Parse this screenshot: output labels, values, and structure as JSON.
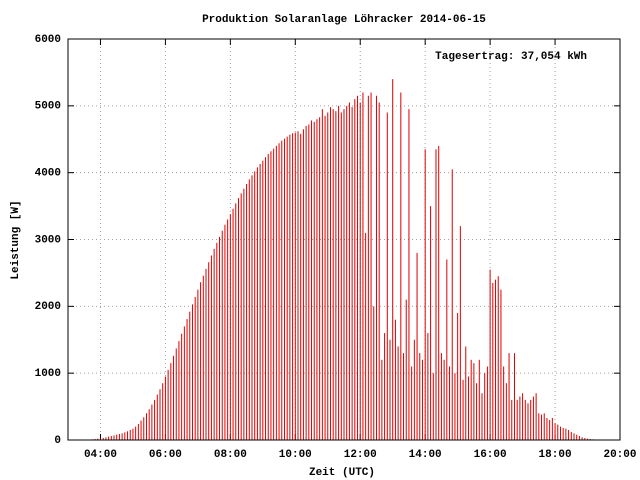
{
  "chart_data": {
    "type": "impulse",
    "title": "Produktion Solaranlage Löhracker 2014-06-15",
    "annotation": "Tagesertrag: 37,054 kWh",
    "x_label": "Zeit (UTC)",
    "y_label": "Leistung [W]",
    "color": "#dd0000",
    "grid": true,
    "xlim": [
      180,
      1200
    ],
    "xticks": [
      {
        "value": 240,
        "label": "04:00"
      },
      {
        "value": 360,
        "label": "06:00"
      },
      {
        "value": 480,
        "label": "08:00"
      },
      {
        "value": 600,
        "label": "10:00"
      },
      {
        "value": 720,
        "label": "12:00"
      },
      {
        "value": 840,
        "label": "14:00"
      },
      {
        "value": 960,
        "label": "16:00"
      },
      {
        "value": 1080,
        "label": "18:00"
      },
      {
        "value": 1200,
        "label": "20:00"
      }
    ],
    "ylim": [
      0,
      6000
    ],
    "yticks": [
      0,
      1000,
      2000,
      3000,
      4000,
      5000,
      6000
    ],
    "x": [
      225,
      230,
      235,
      240,
      245,
      250,
      255,
      260,
      265,
      270,
      275,
      280,
      285,
      290,
      295,
      300,
      305,
      310,
      315,
      320,
      325,
      330,
      335,
      340,
      345,
      350,
      355,
      360,
      365,
      370,
      375,
      380,
      385,
      390,
      395,
      400,
      405,
      410,
      415,
      420,
      425,
      430,
      435,
      440,
      445,
      450,
      455,
      460,
      465,
      470,
      475,
      480,
      485,
      490,
      495,
      500,
      505,
      510,
      515,
      520,
      525,
      530,
      535,
      540,
      545,
      550,
      555,
      560,
      565,
      570,
      575,
      580,
      585,
      590,
      595,
      600,
      605,
      610,
      615,
      620,
      625,
      630,
      635,
      640,
      645,
      650,
      655,
      660,
      665,
      670,
      675,
      680,
      685,
      690,
      695,
      700,
      705,
      710,
      715,
      720,
      725,
      730,
      735,
      740,
      745,
      750,
      755,
      760,
      765,
      770,
      775,
      780,
      785,
      790,
      795,
      800,
      805,
      810,
      815,
      820,
      825,
      830,
      835,
      840,
      845,
      850,
      855,
      860,
      865,
      870,
      875,
      880,
      885,
      890,
      895,
      900,
      905,
      910,
      915,
      920,
      925,
      930,
      935,
      940,
      945,
      950,
      955,
      960,
      965,
      970,
      975,
      980,
      985,
      990,
      995,
      1000,
      1005,
      1010,
      1015,
      1020,
      1025,
      1030,
      1035,
      1040,
      1045,
      1050,
      1055,
      1060,
      1065,
      1070,
      1075,
      1080,
      1085,
      1090,
      1095,
      1100,
      1105,
      1110,
      1115,
      1120,
      1125,
      1130,
      1135,
      1140,
      1145,
      1150,
      1155,
      1160,
      1165,
      1170,
      1175
    ],
    "values": [
      10,
      15,
      20,
      25,
      30,
      40,
      50,
      60,
      70,
      80,
      90,
      100,
      115,
      130,
      150,
      170,
      200,
      240,
      290,
      340,
      400,
      460,
      530,
      600,
      680,
      760,
      850,
      950,
      1050,
      1150,
      1260,
      1370,
      1480,
      1590,
      1700,
      1810,
      1920,
      2030,
      2140,
      2250,
      2360,
      2460,
      2560,
      2660,
      2760,
      2860,
      2950,
      3040,
      3130,
      3220,
      3300,
      3380,
      3460,
      3540,
      3620,
      3690,
      3760,
      3830,
      3900,
      3960,
      4020,
      4080,
      4130,
      4180,
      4230,
      4280,
      4320,
      4360,
      4400,
      4440,
      4480,
      4510,
      4540,
      4570,
      4590,
      4600,
      4620,
      4580,
      4650,
      4700,
      4720,
      4780,
      4760,
      4800,
      4830,
      4950,
      4850,
      4900,
      4980,
      4950,
      4920,
      5000,
      4900,
      4950,
      5000,
      5050,
      4980,
      5100,
      5150,
      5050,
      5200,
      3100,
      5150,
      5200,
      2000,
      5150,
      5050,
      1200,
      1600,
      4900,
      1500,
      5400,
      1800,
      1400,
      5200,
      1300,
      2100,
      4950,
      1100,
      1500,
      2800,
      1300,
      1200,
      4350,
      1600,
      3500,
      1000,
      4350,
      4400,
      1300,
      1200,
      2700,
      1100,
      4050,
      1000,
      1900,
      3200,
      900,
      1400,
      950,
      1200,
      1150,
      850,
      1200,
      700,
      1000,
      1100,
      2550,
      2350,
      2400,
      2450,
      2250,
      1100,
      850,
      1300,
      600,
      1300,
      600,
      650,
      700,
      600,
      550,
      600,
      650,
      700,
      400,
      380,
      400,
      330,
      300,
      330,
      250,
      230,
      200,
      180,
      170,
      150,
      120,
      100,
      80,
      60,
      40,
      30,
      20,
      15,
      10,
      8,
      5,
      3,
      2,
      1
    ]
  }
}
